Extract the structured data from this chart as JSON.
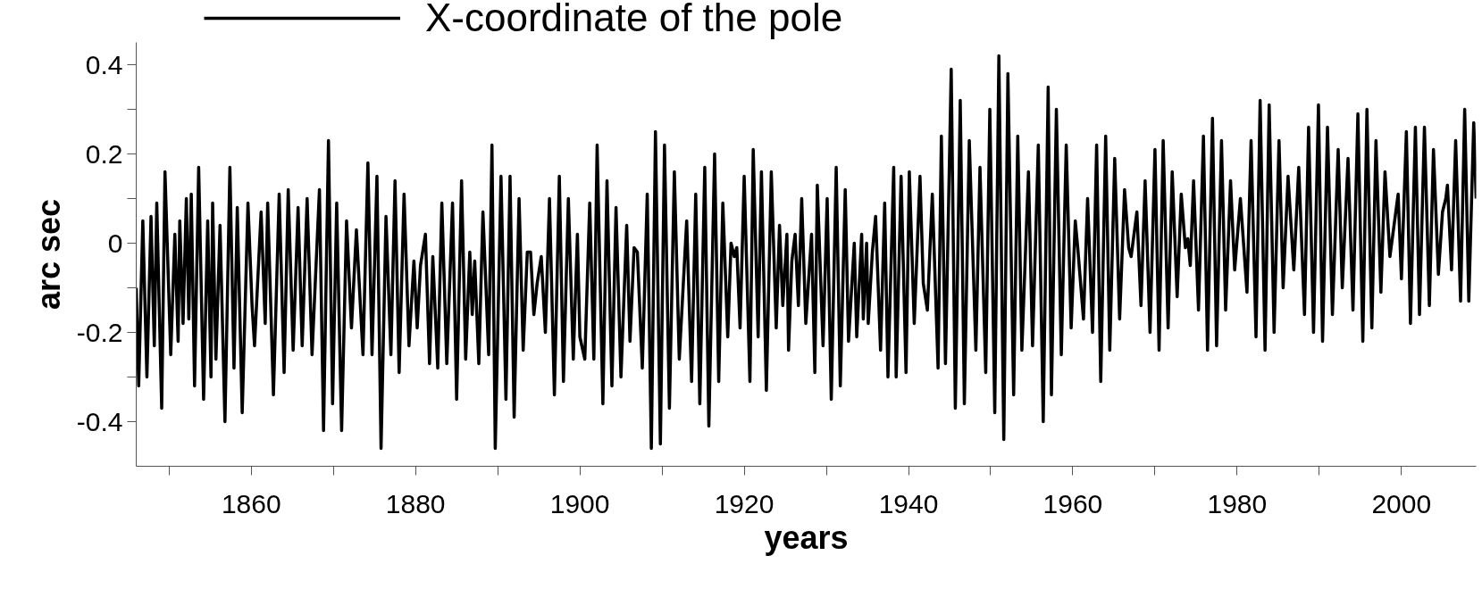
{
  "chart_data": {
    "type": "line",
    "xlabel": "years",
    "ylabel": "arc sec",
    "xlim": [
      1846,
      2009.1
    ],
    "ylim": [
      -0.5,
      0.45
    ],
    "xticks": [
      {
        "value": 1850,
        "label": null
      },
      1860,
      {
        "value": 1870,
        "label": null
      },
      1880,
      {
        "value": 1890,
        "label": null
      },
      1900,
      {
        "value": 1910,
        "label": null
      },
      1920,
      {
        "value": 1930,
        "label": null
      },
      1940,
      {
        "value": 1950,
        "label": null
      },
      1960,
      {
        "value": 1970,
        "label": null
      },
      1980,
      {
        "value": 1990,
        "label": null
      },
      2000
    ],
    "yticks": [
      -0.4,
      {
        "value": -0.3,
        "label": null
      },
      -0.2,
      {
        "value": -0.1,
        "label": null
      },
      0,
      {
        "value": 0.1,
        "label": null
      },
      0.2,
      {
        "value": 0.3,
        "label": null
      },
      0.4
    ],
    "grid": false,
    "legend": "top",
    "marker": "none",
    "line_style": "solid",
    "series": [
      {
        "name": "X-coordinate of the pole",
        "color": "#000000",
        "x": [
          1846.0,
          1846.3,
          1846.8,
          1847.3,
          1847.8,
          1848.2,
          1848.5,
          1849.1,
          1849.5,
          1850.2,
          1850.7,
          1851.1,
          1851.3,
          1851.7,
          1852.1,
          1852.4,
          1852.7,
          1853.1,
          1853.6,
          1854.2,
          1854.7,
          1855.1,
          1855.3,
          1855.7,
          1856.2,
          1856.8,
          1857.4,
          1857.9,
          1858.3,
          1858.9,
          1859.6,
          1860.1,
          1860.4,
          1861.2,
          1861.7,
          1862.0,
          1862.7,
          1863.4,
          1864.0,
          1864.5,
          1865.1,
          1865.7,
          1866.2,
          1866.8,
          1867.4,
          1868.3,
          1868.8,
          1869.4,
          1869.9,
          1870.4,
          1871.0,
          1871.6,
          1872.2,
          1872.8,
          1873.6,
          1874.2,
          1874.7,
          1875.3,
          1875.8,
          1876.4,
          1877.0,
          1877.5,
          1878.0,
          1878.6,
          1879.2,
          1879.8,
          1880.2,
          1880.6,
          1881.2,
          1881.7,
          1882.1,
          1882.7,
          1883.2,
          1883.8,
          1884.5,
          1885.0,
          1885.6,
          1886.1,
          1886.6,
          1886.9,
          1887.2,
          1887.7,
          1888.2,
          1888.9,
          1889.3,
          1889.7,
          1890.4,
          1891.0,
          1891.5,
          1892.0,
          1892.6,
          1893.1,
          1893.6,
          1894.0,
          1894.4,
          1894.8,
          1895.3,
          1895.8,
          1896.3,
          1896.9,
          1897.5,
          1898.0,
          1898.6,
          1899.2,
          1899.7,
          1900.0,
          1900.6,
          1901.2,
          1901.7,
          1902.1,
          1902.8,
          1903.3,
          1903.9,
          1904.4,
          1905.0,
          1905.7,
          1906.1,
          1906.6,
          1907.0,
          1907.6,
          1908.2,
          1908.7,
          1909.2,
          1909.8,
          1910.3,
          1910.9,
          1911.5,
          1912.1,
          1913.0,
          1913.6,
          1914.1,
          1914.6,
          1915.2,
          1915.7,
          1916.4,
          1916.9,
          1917.4,
          1918.0,
          1918.4,
          1918.8,
          1919.1,
          1919.5,
          1920.0,
          1920.7,
          1921.1,
          1921.7,
          1922.1,
          1922.7,
          1923.3,
          1923.9,
          1924.3,
          1924.7,
          1925.2,
          1925.4,
          1925.8,
          1926.2,
          1926.6,
          1927.0,
          1927.5,
          1928.2,
          1928.6,
          1928.9,
          1929.6,
          1930.1,
          1930.6,
          1931.2,
          1931.7,
          1932.3,
          1932.7,
          1933.4,
          1933.7,
          1934.3,
          1934.5,
          1934.9,
          1935.1,
          1935.6,
          1936.0,
          1936.6,
          1937.1,
          1937.5,
          1938.2,
          1938.5,
          1939.1,
          1939.7,
          1940.1,
          1940.7,
          1941.4,
          1941.8,
          1942.3,
          1942.9,
          1943.6,
          1944.0,
          1944.5,
          1945.2,
          1945.7,
          1946.3,
          1946.8,
          1947.4,
          1948.2,
          1948.7,
          1949.4,
          1949.9,
          1950.5,
          1951.0,
          1951.6,
          1952.1,
          1952.8,
          1953.3,
          1953.8,
          1954.6,
          1955.1,
          1955.8,
          1956.4,
          1957.0,
          1957.4,
          1958.0,
          1958.6,
          1959.2,
          1959.8,
          1960.3,
          1960.6,
          1961.3,
          1961.8,
          1962.4,
          1962.9,
          1963.4,
          1964.0,
          1964.5,
          1965.1,
          1965.7,
          1966.3,
          1966.8,
          1967.1,
          1967.8,
          1968.3,
          1968.8,
          1969.4,
          1970.0,
          1970.5,
          1971.0,
          1971.6,
          1972.1,
          1972.7,
          1973.2,
          1973.7,
          1974.0,
          1974.3,
          1974.7,
          1975.3,
          1975.9,
          1976.4,
          1977.0,
          1977.5,
          1978.1,
          1978.6,
          1979.2,
          1979.7,
          1980.4,
          1981.2,
          1981.7,
          1982.3,
          1982.8,
          1983.4,
          1983.9,
          1984.5,
          1985.1,
          1985.6,
          1986.2,
          1986.9,
          1987.5,
          1988.2,
          1988.7,
          1989.3,
          1989.9,
          1990.4,
          1991.0,
          1991.6,
          1992.3,
          1992.8,
          1993.5,
          1994.1,
          1994.7,
          1995.3,
          1995.8,
          1996.4,
          1996.9,
          1997.5,
          1998.0,
          1998.6,
          1999.6,
          2000.0,
          2000.6,
          2001.1,
          2001.7,
          2002.2,
          2002.8,
          2003.4,
          2003.9,
          2004.5,
          2005.0,
          2005.4,
          2005.6,
          2006.1,
          2006.6,
          2007.2,
          2007.7,
          2008.2,
          2008.8,
          2009.1
        ],
        "values": [
          -0.1,
          -0.32,
          0.05,
          -0.3,
          0.06,
          -0.23,
          0.09,
          -0.37,
          0.16,
          -0.25,
          0.02,
          -0.22,
          0.05,
          -0.18,
          0.1,
          -0.17,
          0.11,
          -0.32,
          0.17,
          -0.35,
          0.05,
          -0.3,
          0.09,
          -0.26,
          0.04,
          -0.4,
          0.17,
          -0.28,
          0.08,
          -0.38,
          0.09,
          -0.14,
          -0.23,
          0.07,
          -0.18,
          0.09,
          -0.34,
          0.11,
          -0.29,
          0.12,
          -0.24,
          0.08,
          -0.23,
          0.1,
          -0.25,
          0.12,
          -0.42,
          0.23,
          -0.36,
          0.09,
          -0.42,
          0.05,
          -0.19,
          0.03,
          -0.25,
          0.18,
          -0.25,
          0.15,
          -0.46,
          0.06,
          -0.25,
          0.14,
          -0.29,
          0.11,
          -0.23,
          -0.04,
          -0.19,
          -0.05,
          0.02,
          -0.27,
          -0.03,
          -0.28,
          0.09,
          -0.27,
          0.09,
          -0.35,
          0.14,
          -0.26,
          -0.02,
          -0.16,
          -0.04,
          -0.27,
          0.07,
          -0.25,
          0.22,
          -0.46,
          0.15,
          -0.35,
          0.15,
          -0.39,
          0.1,
          -0.24,
          -0.02,
          -0.02,
          -0.16,
          -0.09,
          -0.03,
          -0.2,
          0.1,
          -0.34,
          0.15,
          -0.31,
          0.1,
          -0.26,
          0.02,
          -0.21,
          -0.26,
          0.09,
          -0.26,
          0.22,
          -0.36,
          0.14,
          -0.32,
          0.08,
          -0.3,
          0.04,
          -0.22,
          -0.01,
          -0.02,
          -0.28,
          0.11,
          -0.46,
          0.25,
          -0.45,
          0.22,
          -0.37,
          0.16,
          -0.26,
          0.05,
          -0.31,
          0.11,
          -0.36,
          0.17,
          -0.41,
          0.2,
          -0.31,
          0.09,
          -0.21,
          0.0,
          -0.03,
          -0.01,
          -0.19,
          0.15,
          -0.31,
          0.21,
          -0.21,
          0.16,
          -0.33,
          0.16,
          -0.19,
          0.04,
          -0.14,
          0.02,
          -0.24,
          -0.04,
          0.02,
          -0.14,
          0.1,
          -0.18,
          0.02,
          -0.29,
          0.13,
          -0.23,
          0.1,
          -0.35,
          0.17,
          -0.32,
          0.12,
          -0.22,
          0.0,
          -0.21,
          0.02,
          -0.17,
          0.0,
          -0.18,
          -0.02,
          0.06,
          -0.24,
          0.09,
          -0.3,
          0.17,
          -0.3,
          0.15,
          -0.29,
          0.16,
          -0.18,
          0.15,
          -0.09,
          -0.15,
          0.11,
          -0.28,
          0.24,
          -0.27,
          0.39,
          -0.37,
          0.32,
          -0.36,
          0.23,
          -0.24,
          0.17,
          -0.29,
          0.3,
          -0.38,
          0.42,
          -0.44,
          0.38,
          -0.34,
          0.24,
          -0.24,
          0.16,
          -0.23,
          0.22,
          -0.4,
          0.35,
          -0.34,
          0.3,
          -0.25,
          0.22,
          -0.19,
          0.05,
          -0.01,
          -0.17,
          0.1,
          -0.2,
          0.22,
          -0.31,
          0.24,
          -0.24,
          0.19,
          -0.17,
          0.12,
          -0.01,
          -0.03,
          0.07,
          -0.14,
          0.14,
          -0.2,
          0.21,
          -0.24,
          0.23,
          -0.19,
          0.16,
          -0.12,
          0.11,
          -0.01,
          0.01,
          -0.05,
          0.14,
          -0.15,
          0.24,
          -0.24,
          0.28,
          -0.23,
          0.23,
          -0.15,
          0.14,
          -0.06,
          0.1,
          -0.11,
          0.23,
          -0.21,
          0.32,
          -0.24,
          0.31,
          -0.2,
          0.23,
          -0.1,
          0.15,
          -0.06,
          0.17,
          -0.16,
          0.26,
          -0.2,
          0.31,
          -0.22,
          0.26,
          -0.16,
          0.21,
          -0.1,
          0.19,
          -0.15,
          0.29,
          -0.22,
          0.3,
          -0.19,
          0.23,
          -0.11,
          0.16,
          -0.03,
          0.11,
          -0.08,
          0.25,
          -0.18,
          0.26,
          -0.16,
          0.26,
          -0.14,
          0.21,
          -0.07,
          0.07,
          0.1,
          0.13,
          -0.06,
          0.23,
          -0.13,
          0.3,
          -0.13,
          0.27,
          0.1
        ]
      }
    ]
  }
}
